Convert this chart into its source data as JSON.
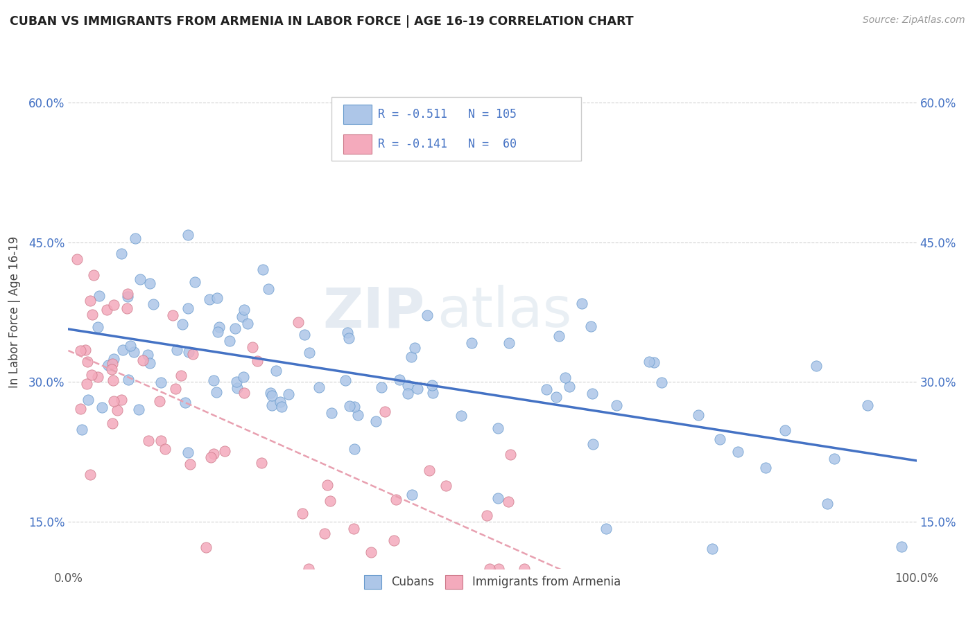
{
  "title": "CUBAN VS IMMIGRANTS FROM ARMENIA IN LABOR FORCE | AGE 16-19 CORRELATION CHART",
  "source": "Source: ZipAtlas.com",
  "ylabel": "In Labor Force | Age 16-19",
  "xlim": [
    0.0,
    1.0
  ],
  "ylim": [
    0.1,
    0.65
  ],
  "yticks": [
    0.15,
    0.3,
    0.45,
    0.6
  ],
  "ytick_labels": [
    "15.0%",
    "30.0%",
    "45.0%",
    "60.0%"
  ],
  "xticks": [
    0.0,
    0.25,
    0.5,
    0.75,
    1.0
  ],
  "xtick_labels": [
    "0.0%",
    "",
    "",
    "",
    "100.0%"
  ],
  "cubans_R": -0.511,
  "cubans_N": 105,
  "armenia_R": -0.141,
  "armenia_N": 60,
  "blue_scatter_color": "#adc6e8",
  "blue_edge_color": "#6699cc",
  "pink_scatter_color": "#f4aabc",
  "pink_edge_color": "#cc7788",
  "blue_line_color": "#4472c4",
  "pink_line_color": "#e8a0b0",
  "tick_color": "#4472c4",
  "background_color": "#ffffff",
  "grid_color": "#cccccc",
  "watermark_zip": "ZIP",
  "watermark_atlas": "atlas",
  "legend_label_color": "#4472c4"
}
